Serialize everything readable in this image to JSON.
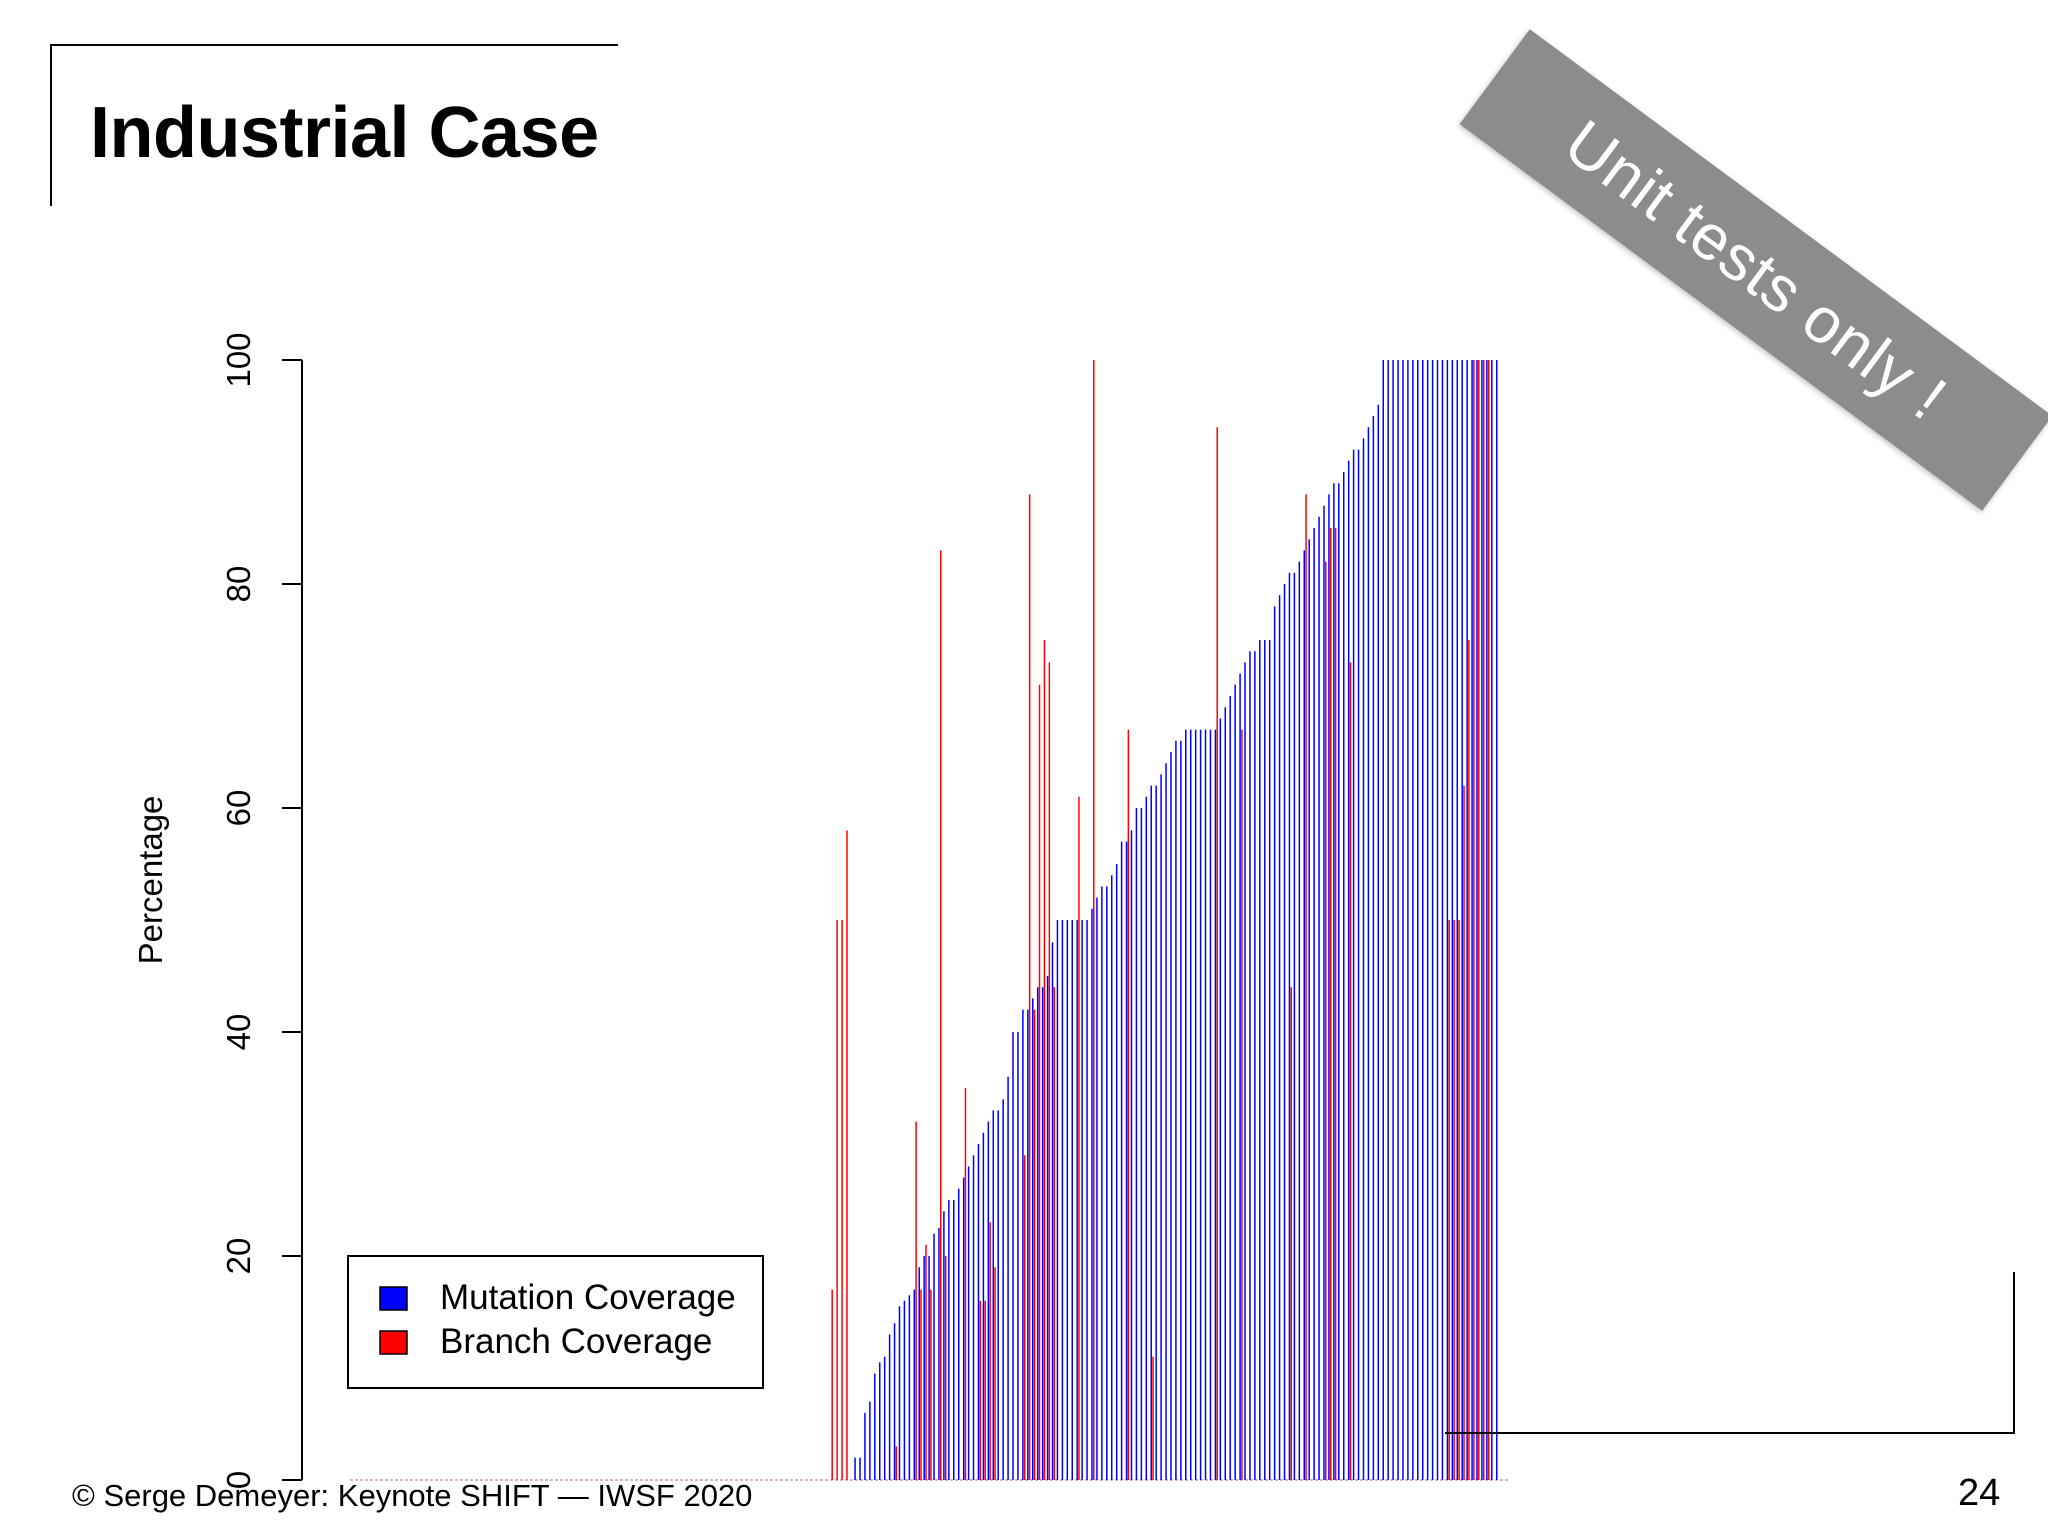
{
  "slide": {
    "title": "Industrial Case",
    "ribbon": "Unit tests only !",
    "footer": "© Serge Demeyer: Keynote SHIFT — IWSF 2020",
    "page_number": "24"
  },
  "colors": {
    "mutation": "#0000ff",
    "branch": "#ff0000",
    "ribbon": "#8c8c8c"
  },
  "chart_data": {
    "type": "bar",
    "ylabel": "Percentage",
    "ylim": [
      0,
      100
    ],
    "yticks": [
      "0",
      "20",
      "40",
      "60",
      "80",
      "100"
    ],
    "grid": false,
    "legend_position": "bottom-left",
    "categories_count": 235,
    "series": [
      {
        "name": "Mutation Coverage",
        "values": [
          0,
          0,
          0,
          0,
          0,
          0,
          0,
          0,
          0,
          0,
          0,
          0,
          0,
          0,
          0,
          0,
          0,
          0,
          0,
          0,
          0,
          0,
          0,
          0,
          0,
          0,
          0,
          0,
          0,
          0,
          0,
          0,
          0,
          0,
          0,
          0,
          0,
          0,
          0,
          0,
          0,
          0,
          0,
          0,
          0,
          0,
          0,
          0,
          0,
          0,
          0,
          0,
          0,
          0,
          0,
          0,
          0,
          0,
          0,
          0,
          0,
          0,
          0,
          0,
          0,
          0,
          0,
          0,
          0,
          0,
          0,
          0,
          0,
          0,
          0,
          0,
          0,
          0,
          0,
          0,
          0,
          0,
          0,
          0,
          0,
          0,
          0,
          0,
          0,
          0,
          0,
          0,
          0,
          0,
          0,
          0,
          0,
          0,
          0,
          0,
          0,
          0,
          2,
          2,
          6,
          7,
          9.5,
          10.5,
          11,
          13,
          14,
          15.5,
          16,
          16.5,
          17,
          19,
          20,
          20,
          22,
          22.5,
          24,
          25,
          25,
          26,
          27,
          28,
          29,
          30,
          31,
          32,
          33,
          33,
          34,
          36,
          40,
          40,
          42,
          42,
          43,
          44,
          44,
          45,
          48,
          50,
          50,
          50,
          50,
          50,
          50,
          50,
          51,
          52,
          53,
          53,
          54,
          55,
          57,
          57,
          58,
          60,
          60,
          61,
          62,
          62,
          63,
          64,
          65,
          66,
          66,
          67,
          67,
          67,
          67,
          67,
          67,
          67,
          68,
          69,
          70,
          71,
          72,
          73,
          74,
          74,
          75,
          75,
          75,
          78,
          79,
          80,
          81,
          81,
          82,
          83,
          84,
          85,
          86,
          87,
          88,
          89,
          89,
          90,
          91,
          92,
          92,
          93,
          94,
          95,
          96,
          100,
          100,
          100,
          100,
          100,
          100,
          100,
          100,
          100,
          100,
          100,
          100,
          100,
          100,
          100,
          100,
          100,
          100,
          100,
          100,
          100,
          100,
          100,
          100
        ]
      },
      {
        "name": "Branch Coverage",
        "values": [
          0,
          0,
          0,
          0,
          0,
          0,
          0,
          0,
          0,
          0,
          0,
          0,
          0,
          0,
          0,
          0,
          0,
          0,
          0,
          0,
          0,
          0,
          0,
          0,
          0,
          0,
          0,
          0,
          0,
          0,
          0,
          0,
          0,
          0,
          0,
          0,
          0,
          0,
          0,
          0,
          0,
          0,
          0,
          0,
          0,
          0,
          0,
          0,
          0,
          0,
          0,
          0,
          0,
          0,
          0,
          0,
          0,
          0,
          0,
          0,
          0,
          0,
          0,
          0,
          0,
          0,
          0,
          0,
          0,
          0,
          0,
          0,
          0,
          0,
          0,
          0,
          0,
          0,
          0,
          0,
          0,
          0,
          0,
          0,
          0,
          0,
          0,
          0,
          0,
          0,
          0,
          0,
          0,
          0,
          0,
          0,
          0,
          17,
          50,
          50,
          58,
          0,
          0,
          0,
          0,
          0,
          0,
          0,
          0,
          0,
          3,
          0,
          0,
          0,
          32,
          17,
          21,
          17,
          0,
          83,
          20,
          0,
          0,
          0,
          35,
          0,
          0,
          16,
          16,
          23,
          19,
          0,
          0,
          0,
          0,
          0,
          29,
          88,
          42,
          71,
          75,
          73,
          44,
          0,
          0,
          0,
          0,
          61,
          0,
          0,
          100,
          0,
          0,
          0,
          0,
          0,
          0,
          67,
          0,
          0,
          0,
          0,
          11,
          0,
          0,
          0,
          0,
          0,
          0,
          0,
          0,
          0,
          0,
          0,
          0,
          94,
          0,
          0,
          0,
          0,
          67,
          0,
          0,
          0,
          0,
          0,
          0,
          0,
          0,
          0,
          44,
          0,
          0,
          88,
          0,
          0,
          0,
          82,
          85,
          85,
          0,
          0,
          73,
          0,
          0,
          0,
          0,
          0,
          0,
          0,
          0,
          0,
          0,
          0,
          0,
          0,
          0,
          0,
          0,
          0,
          0,
          0,
          50,
          50,
          50,
          62,
          75,
          100,
          100,
          100,
          100
        ]
      }
    ]
  }
}
